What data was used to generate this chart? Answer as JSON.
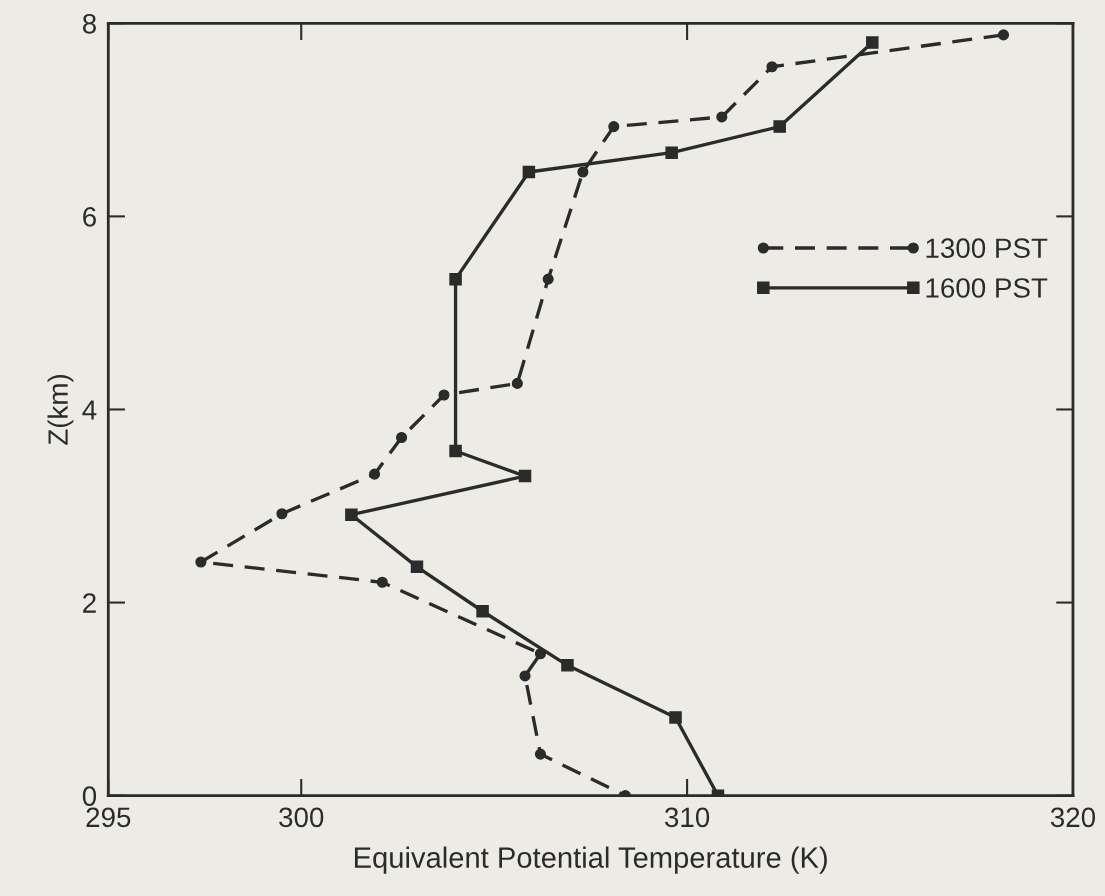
{
  "chart_data": {
    "type": "line",
    "xlabel": "Equivalent Potential Temperature (K)",
    "ylabel": "Z(km)",
    "xlim": [
      295,
      320
    ],
    "ylim": [
      0,
      8
    ],
    "xticks": [
      295,
      300,
      310,
      320
    ],
    "yticks": [
      0,
      2,
      4,
      6,
      8
    ],
    "grid": false,
    "legend": "right",
    "series": [
      {
        "name": "1300 PST",
        "color": "#2b2b2b",
        "marker": "circle",
        "line_style": "dashed",
        "x": [
          318.2,
          312.2,
          310.9,
          308.1,
          307.3,
          306.4,
          305.6,
          303.7,
          302.6,
          301.9,
          299.5,
          297.4,
          302.1,
          306.2,
          305.8,
          306.2,
          308.4
        ],
        "values": [
          7.88,
          7.55,
          7.03,
          6.93,
          6.46,
          5.35,
          4.27,
          4.15,
          3.71,
          3.33,
          2.92,
          2.42,
          2.21,
          1.47,
          1.24,
          0.43,
          0.0
        ]
      },
      {
        "name": "1600 PST",
        "color": "#2b2b2b",
        "marker": "square",
        "line_style": "solid",
        "x": [
          314.8,
          312.4,
          309.6,
          305.9,
          304.0,
          304.0,
          305.8,
          301.3,
          303.0,
          304.7,
          306.9,
          309.7,
          310.8
        ],
        "values": [
          7.8,
          6.93,
          6.66,
          6.46,
          5.35,
          3.57,
          3.31,
          2.91,
          2.37,
          1.91,
          1.35,
          0.81,
          0.0
        ]
      }
    ]
  }
}
